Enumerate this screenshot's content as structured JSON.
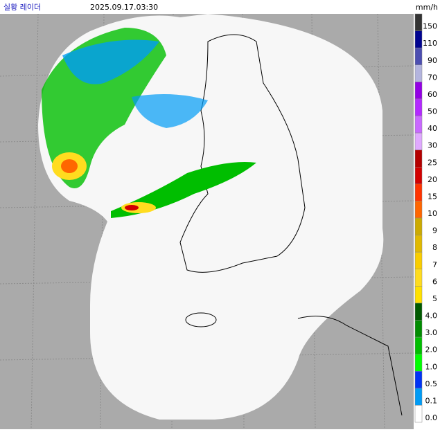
{
  "header": {
    "title": "실황 레이더",
    "timestamp": "2025.09.17.03:30",
    "unit": "mm/h"
  },
  "legend": {
    "items": [
      {
        "label": "150",
        "color": "#333333"
      },
      {
        "label": "110",
        "color": "#000390"
      },
      {
        "label": "90",
        "color": "#4c4eb1"
      },
      {
        "label": "70",
        "color": "#b3b4de"
      },
      {
        "label": "60",
        "color": "#9300e4"
      },
      {
        "label": "50",
        "color": "#b329ff"
      },
      {
        "label": "40",
        "color": "#c969ff"
      },
      {
        "label": "30",
        "color": "#e0a9ff"
      },
      {
        "label": "25",
        "color": "#b40000"
      },
      {
        "label": "20",
        "color": "#d20000"
      },
      {
        "label": "15",
        "color": "#ff3300"
      },
      {
        "label": "10",
        "color": "#ff6600"
      },
      {
        "label": "9",
        "color": "#ccaa00"
      },
      {
        "label": "8",
        "color": "#e0b900"
      },
      {
        "label": "7",
        "color": "#f9cd00"
      },
      {
        "label": "6",
        "color": "#ffdc1f"
      },
      {
        "label": "5",
        "color": "#ffe100"
      },
      {
        "label": "4.0",
        "color": "#005a00"
      },
      {
        "label": "3.0",
        "color": "#008c00"
      },
      {
        "label": "2.0",
        "color": "#00be00"
      },
      {
        "label": "1.0",
        "color": "#00ff00"
      },
      {
        "label": "0.5",
        "color": "#0033f5"
      },
      {
        "label": "0.1",
        "color": "#009bf5"
      },
      {
        "label": "0.0",
        "color": "#ffffff"
      }
    ]
  }
}
